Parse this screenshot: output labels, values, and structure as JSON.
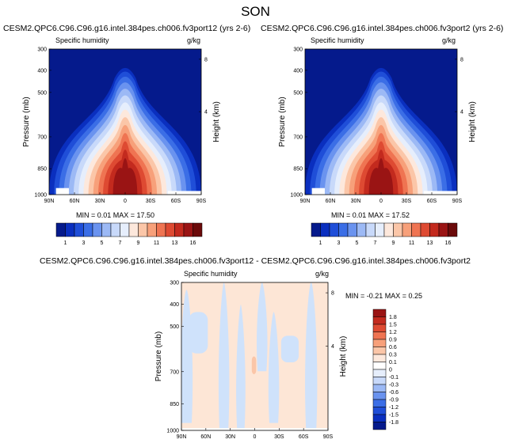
{
  "title": "SON",
  "colors": {
    "blue_scale": [
      "#051a8c",
      "#0a2fbf",
      "#1f4ed8",
      "#3b6ee6",
      "#6a93ef",
      "#9cb9f5",
      "#c8d9fa",
      "#e6eefc"
    ],
    "warm_scale": [
      "#fde8dc",
      "#fbc6a8",
      "#f7a07a",
      "#ef7452",
      "#de4a32",
      "#c32a1e",
      "#9a1414",
      "#6b0a0a"
    ],
    "diff_neg": "#cfe2fb",
    "diff_pos": "#fde6d6"
  },
  "chart_data": [
    {
      "type": "heatmap",
      "title": "CESM2.QPC6.C96.C96.g16.intel.384pes.ch006.fv3port12 (yrs 2-6)",
      "left_label": "Specific humidity",
      "right_label": "g/kg",
      "ylabel": "Pressure (mb)",
      "y2label": "Height (km)",
      "xticks": [
        "90N",
        "60N",
        "30N",
        "0",
        "30S",
        "60S",
        "90S"
      ],
      "yticks": [
        "300",
        "400",
        "500",
        "700",
        "850",
        "1000"
      ],
      "y2ticks": [
        "8",
        "4"
      ],
      "stats": "MIN =  0.01  MAX = 17.50",
      "colorbar_labels": [
        "1",
        "3",
        "5",
        "7",
        "9",
        "11",
        "13",
        "16"
      ]
    },
    {
      "type": "heatmap",
      "title": "CESM2.QPC6.C96.C96.g16.intel.384pes.ch006.fv3port2 (yrs 2-6)",
      "left_label": "Specific humidity",
      "right_label": "g/kg",
      "ylabel": "Pressure (mb)",
      "y2label": "Height (km)",
      "xticks": [
        "90N",
        "60N",
        "30N",
        "0",
        "30S",
        "60S",
        "90S"
      ],
      "yticks": [
        "300",
        "400",
        "500",
        "700",
        "850",
        "1000"
      ],
      "y2ticks": [
        "8",
        "4"
      ],
      "stats": "MIN =  0.01  MAX = 17.52",
      "colorbar_labels": [
        "1",
        "3",
        "5",
        "7",
        "9",
        "11",
        "13",
        "16"
      ]
    },
    {
      "type": "heatmap",
      "title": "CESM2.QPC6.C96.C96.g16.intel.384pes.ch006.fv3port12 - CESM2.QPC6.C96.C96.g16.intel.384pes.ch006.fv3port2",
      "left_label": "Specific humidity",
      "right_label": "g/kg",
      "ylabel": "Pressure (mb)",
      "y2label": "Height (km)",
      "xticks": [
        "90N",
        "60N",
        "30N",
        "0",
        "30S",
        "60S",
        "90S"
      ],
      "yticks": [
        "300",
        "400",
        "500",
        "700",
        "850",
        "1000"
      ],
      "y2ticks": [
        "8",
        "4"
      ],
      "stats": "MIN = -0.21  MAX =   0.25",
      "colorbar_labels": [
        "1.8",
        "1.5",
        "1.2",
        "0.9",
        "0.6",
        "0.3",
        "0.1",
        "0",
        "-0.1",
        "-0.3",
        "-0.6",
        "-0.9",
        "-1.2",
        "-1.5",
        "-1.8"
      ]
    }
  ]
}
